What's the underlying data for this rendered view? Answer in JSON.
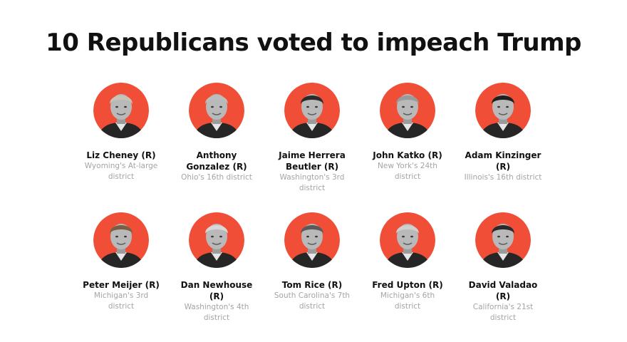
{
  "title": "10 Republicans voted to impeach Trump",
  "accent_color": "#f04e37",
  "members": [
    {
      "name": "Liz Cheney (R)",
      "district": "Wyoming's At-large district",
      "icon": "person-portrait-icon"
    },
    {
      "name": "Anthony Gonzalez (R)",
      "district": "Ohio's 16th district",
      "icon": "person-portrait-icon"
    },
    {
      "name": "Jaime Herrera Beutler (R)",
      "district": "Washington's 3rd district",
      "icon": "person-portrait-icon"
    },
    {
      "name": "John Katko (R)",
      "district": "New York's 24th district",
      "icon": "person-portrait-icon"
    },
    {
      "name": "Adam Kinzinger (R)",
      "district": "Illinois's 16th district",
      "icon": "person-portrait-icon"
    },
    {
      "name": "Peter Meijer (R)",
      "district": "Michigan's 3rd district",
      "icon": "person-portrait-icon"
    },
    {
      "name": "Dan Newhouse (R)",
      "district": "Washington's 4th district",
      "icon": "person-portrait-icon"
    },
    {
      "name": "Tom Rice (R)",
      "district": "South Carolina's 7th district",
      "icon": "person-portrait-icon"
    },
    {
      "name": "Fred Upton (R)",
      "district": "Michigan's 6th district",
      "icon": "person-portrait-icon"
    },
    {
      "name": "David Valadao (R)",
      "district": "California's 21st district",
      "icon": "person-portrait-icon"
    }
  ]
}
